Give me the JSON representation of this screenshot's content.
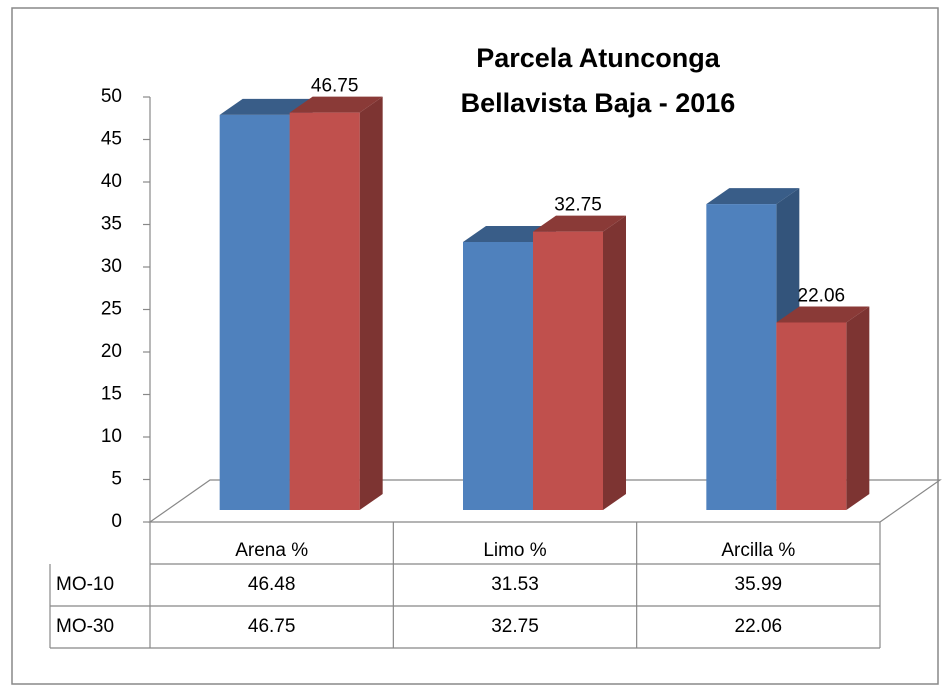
{
  "chart_data": {
    "type": "bar3d",
    "title": [
      "Parcela Atunconga",
      "Bellavista Baja - 2016"
    ],
    "categories": [
      "Arena %",
      "Limo %",
      "Arcilla %"
    ],
    "series": [
      {
        "name": "MO-10",
        "color": "#4f81bd",
        "values": [
          46.48,
          31.53,
          35.99
        ]
      },
      {
        "name": "MO-30",
        "color": "#c0504d",
        "values": [
          46.75,
          32.75,
          22.06
        ]
      }
    ],
    "data_labels_series": "MO-30",
    "ylim": [
      0,
      50
    ],
    "yticks": [
      0,
      5,
      10,
      15,
      20,
      25,
      30,
      35,
      40,
      45,
      50
    ],
    "data_table": true
  }
}
